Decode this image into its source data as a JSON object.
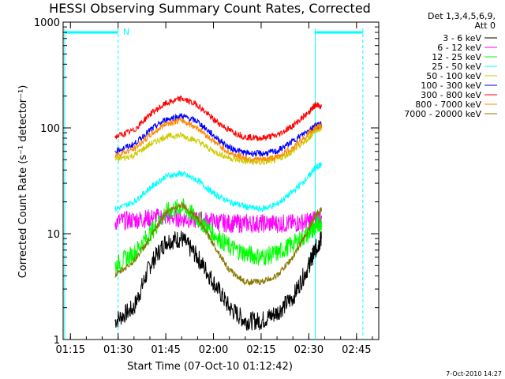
{
  "chart_data": {
    "type": "line",
    "title": "HESSI Observing Summary Count Rates, Corrected",
    "xlabel": "Start Time (07-Oct-10 01:12:42)",
    "ylabel": "Corrected Count Rate (s⁻¹ detector⁻¹)",
    "y_scale": "log",
    "ylim": [
      1,
      1000
    ],
    "xlim": [
      "01:12:42",
      "02:52:00"
    ],
    "x_ticks": [
      "01:15",
      "01:30",
      "01:45",
      "02:00",
      "02:15",
      "02:30",
      "02:45"
    ],
    "y_ticks": [
      "1",
      "10",
      "100",
      "1000"
    ],
    "legend_header": [
      "Det 1,3,4,5,6,9,",
      "Att 0"
    ],
    "legend_position": "right",
    "series": [
      {
        "name": "3 - 6 keV",
        "color": "#000000",
        "x": [
          "01:29",
          "01:35",
          "01:40",
          "01:45",
          "01:50",
          "01:55",
          "02:00",
          "02:05",
          "02:10",
          "02:15",
          "02:20",
          "02:25",
          "02:30",
          "02:32",
          "02:34"
        ],
        "values": [
          1.5,
          2,
          5,
          8.5,
          9,
          6,
          3.5,
          2,
          1.5,
          1.5,
          1.8,
          2.5,
          5,
          7,
          9
        ]
      },
      {
        "name": "6 - 12 keV",
        "color": "#ff00ff",
        "x": [
          "01:29",
          "01:35",
          "01:40",
          "01:45",
          "01:50",
          "01:55",
          "02:00",
          "02:05",
          "02:10",
          "02:15",
          "02:20",
          "02:25",
          "02:30",
          "02:32",
          "02:34"
        ],
        "values": [
          13,
          13.5,
          14,
          14.5,
          14,
          13.5,
          13,
          12.5,
          12.5,
          12.5,
          12.5,
          12.5,
          13,
          13.5,
          14
        ]
      },
      {
        "name": "12 - 25 keV",
        "color": "#00ff00",
        "x": [
          "01:29",
          "01:35",
          "01:40",
          "01:45",
          "01:50",
          "01:55",
          "02:00",
          "02:05",
          "02:10",
          "02:15",
          "02:20",
          "02:25",
          "02:30",
          "02:32",
          "02:34"
        ],
        "values": [
          5,
          6.5,
          10,
          16,
          18,
          14,
          10,
          7.5,
          6.5,
          6,
          6.5,
          8,
          10,
          12,
          13
        ]
      },
      {
        "name": "25 - 50 keV",
        "color": "#00ffff",
        "x": [
          "01:29",
          "01:35",
          "01:40",
          "01:45",
          "01:50",
          "01:55",
          "02:00",
          "02:05",
          "02:10",
          "02:15",
          "02:20",
          "02:25",
          "02:30",
          "02:32",
          "02:34"
        ],
        "values": [
          17,
          20,
          27,
          35,
          37,
          32,
          24,
          20,
          18,
          17,
          19,
          25,
          35,
          42,
          45
        ]
      },
      {
        "name": "50 - 100 keV",
        "color": "#cccc00",
        "x": [
          "01:29",
          "01:35",
          "01:40",
          "01:45",
          "01:50",
          "01:55",
          "02:00",
          "02:05",
          "02:10",
          "02:15",
          "02:20",
          "02:25",
          "02:30",
          "02:32",
          "02:34"
        ],
        "values": [
          50,
          55,
          70,
          83,
          85,
          75,
          60,
          52,
          48,
          47,
          50,
          60,
          80,
          95,
          100
        ]
      },
      {
        "name": "100 - 300 keV",
        "color": "#0000ff",
        "x": [
          "01:29",
          "01:35",
          "01:40",
          "01:45",
          "01:50",
          "01:55",
          "02:00",
          "02:05",
          "02:10",
          "02:15",
          "02:20",
          "02:25",
          "02:30",
          "02:32",
          "02:34"
        ],
        "values": [
          60,
          70,
          95,
          120,
          130,
          115,
          85,
          65,
          58,
          57,
          60,
          75,
          95,
          105,
          108
        ]
      },
      {
        "name": "300 - 800 keV",
        "color": "#ff0000",
        "x": [
          "01:29",
          "01:35",
          "01:40",
          "01:45",
          "01:50",
          "01:55",
          "02:00",
          "02:05",
          "02:10",
          "02:15",
          "02:20",
          "02:25",
          "02:30",
          "02:32",
          "02:34"
        ],
        "values": [
          82,
          95,
          135,
          170,
          190,
          165,
          120,
          95,
          82,
          80,
          85,
          105,
          140,
          165,
          160
        ]
      },
      {
        "name": "800 - 7000 keV",
        "color": "#ff8800",
        "x": [
          "01:29",
          "01:35",
          "01:40",
          "01:45",
          "01:50",
          "01:55",
          "02:00",
          "02:05",
          "02:10",
          "02:15",
          "02:20",
          "02:25",
          "02:30",
          "02:32",
          "02:34"
        ],
        "values": [
          55,
          63,
          85,
          110,
          118,
          100,
          75,
          58,
          52,
          50,
          53,
          65,
          88,
          100,
          105
        ]
      },
      {
        "name": "7000 - 20000 keV",
        "color": "#887700",
        "x": [
          "01:29",
          "01:35",
          "01:40",
          "01:45",
          "01:50",
          "01:55",
          "02:00",
          "02:05",
          "02:10",
          "02:15",
          "02:20",
          "02:25",
          "02:30",
          "02:32",
          "02:34"
        ],
        "values": [
          4,
          5.5,
          9,
          16,
          19,
          14,
          8,
          4.5,
          3.5,
          3.5,
          4,
          6,
          11,
          15,
          17
        ]
      }
    ],
    "annotations": {
      "night_marker": "N",
      "time_stamp": "7-Oct-2010 14:27"
    }
  }
}
